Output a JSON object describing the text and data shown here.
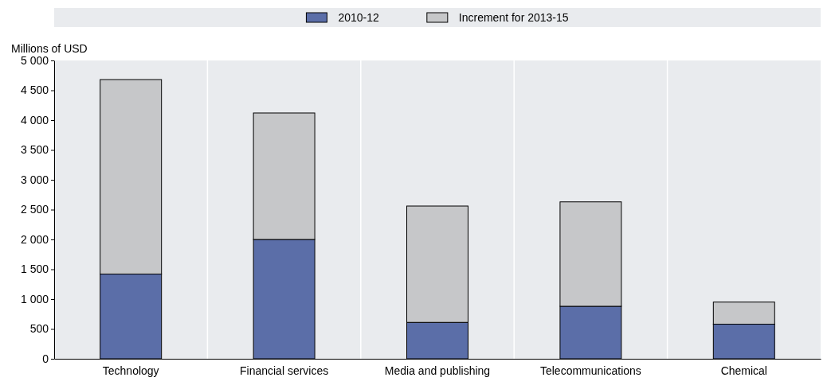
{
  "chart_data": {
    "type": "bar",
    "stacked": true,
    "ylabel": "Millions of USD",
    "categories": [
      "Technology",
      "Financial services",
      "Media and publishing",
      "Telecommunications",
      "Chemical"
    ],
    "series": [
      {
        "name": "2010-12",
        "color": "#5b6ea8",
        "values": [
          1420,
          2000,
          610,
          880,
          580
        ]
      },
      {
        "name": "Increment for 2013-15",
        "color": "#c6c7c9",
        "values": [
          3260,
          2120,
          1950,
          1750,
          370
        ]
      }
    ],
    "ylim": [
      0,
      5000
    ],
    "yticks": [
      0,
      500,
      {
        "value": 1000,
        "label": "1 000"
      },
      {
        "value": 1500,
        "label": "1 500"
      },
      {
        "value": 2000,
        "label": "2 000"
      },
      {
        "value": 2500,
        "label": "2 500"
      },
      {
        "value": 3000,
        "label": "3 000"
      },
      {
        "value": 3500,
        "label": "3 500"
      },
      {
        "value": 4000,
        "label": "4 000"
      },
      {
        "value": 4500,
        "label": "4 500"
      },
      {
        "value": 5000,
        "label": "5 000"
      }
    ],
    "grid": "x",
    "legend": "top"
  }
}
